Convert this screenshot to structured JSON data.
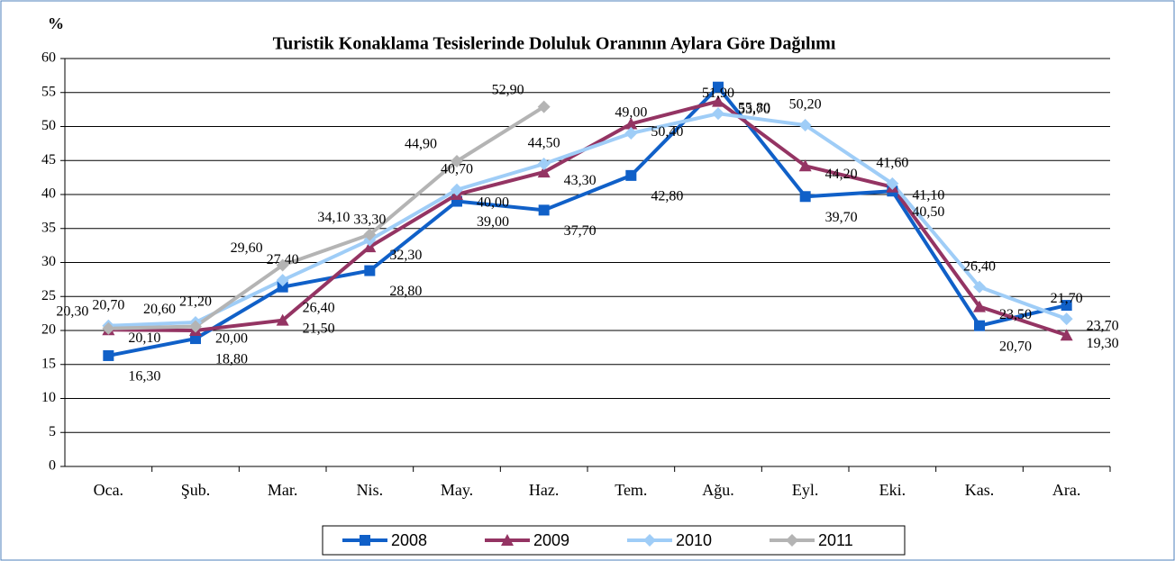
{
  "chart_data": {
    "type": "line",
    "title": "Turistik Konaklama Tesislerinde Doluluk Oranının Aylara Göre Dağılımı",
    "y_label": "%",
    "categories": [
      "Oca.",
      "Şub.",
      "Mar.",
      "Nis.",
      "May.",
      "Haz.",
      "Tem.",
      "Ağu.",
      "Eyl.",
      "Eki.",
      "Kas.",
      "Ara."
    ],
    "ylim": [
      0,
      60
    ],
    "yticks": [
      0,
      5,
      10,
      15,
      20,
      25,
      30,
      35,
      40,
      45,
      50,
      55,
      60
    ],
    "grid": true,
    "legend": "bottom",
    "series": [
      {
        "name": "2008",
        "color": "#1060c8",
        "marker": "square",
        "values": [
          16.3,
          18.8,
          26.4,
          28.8,
          39.0,
          37.7,
          42.8,
          55.8,
          39.7,
          40.5,
          20.7,
          23.7
        ],
        "value_labels": [
          "16,30",
          "18,80",
          "26,40",
          "28,80",
          "39,00",
          "37,70",
          "42,80",
          "55,80",
          "39,70",
          "40,50",
          "20,70",
          "23,70"
        ]
      },
      {
        "name": "2009",
        "color": "#943463",
        "marker": "triangle",
        "values": [
          20.1,
          20.0,
          21.5,
          32.3,
          40.0,
          43.3,
          50.4,
          53.7,
          44.2,
          41.1,
          23.5,
          19.3
        ],
        "value_labels": [
          "20,10",
          "20,00",
          "21,50",
          "32,30",
          "40,00",
          "43,30",
          "50,40",
          "53,70",
          "44,20",
          "41,10",
          "23,50",
          "19,30"
        ]
      },
      {
        "name": "2010",
        "color": "#9fcdf7",
        "marker": "diamond",
        "values": [
          20.7,
          21.2,
          27.4,
          33.3,
          40.7,
          44.5,
          49.0,
          51.9,
          50.2,
          41.6,
          26.4,
          21.7
        ],
        "value_labels": [
          "20,70",
          "21,20",
          "27,40",
          "33,30",
          "40,70",
          "44,50",
          "49,00",
          "51,90",
          "50,20",
          "41,60",
          "26,40",
          "21,70"
        ]
      },
      {
        "name": "2011",
        "color": "#b4b4b4",
        "marker": "diamond",
        "values": [
          20.3,
          20.6,
          29.6,
          34.1,
          44.9,
          52.9,
          null,
          null,
          null,
          null,
          null,
          null
        ],
        "value_labels": [
          "20,30",
          "20,60",
          "29,60",
          "34,10",
          "44,90",
          "52,90",
          null,
          null,
          null,
          null,
          null,
          null
        ]
      }
    ]
  }
}
